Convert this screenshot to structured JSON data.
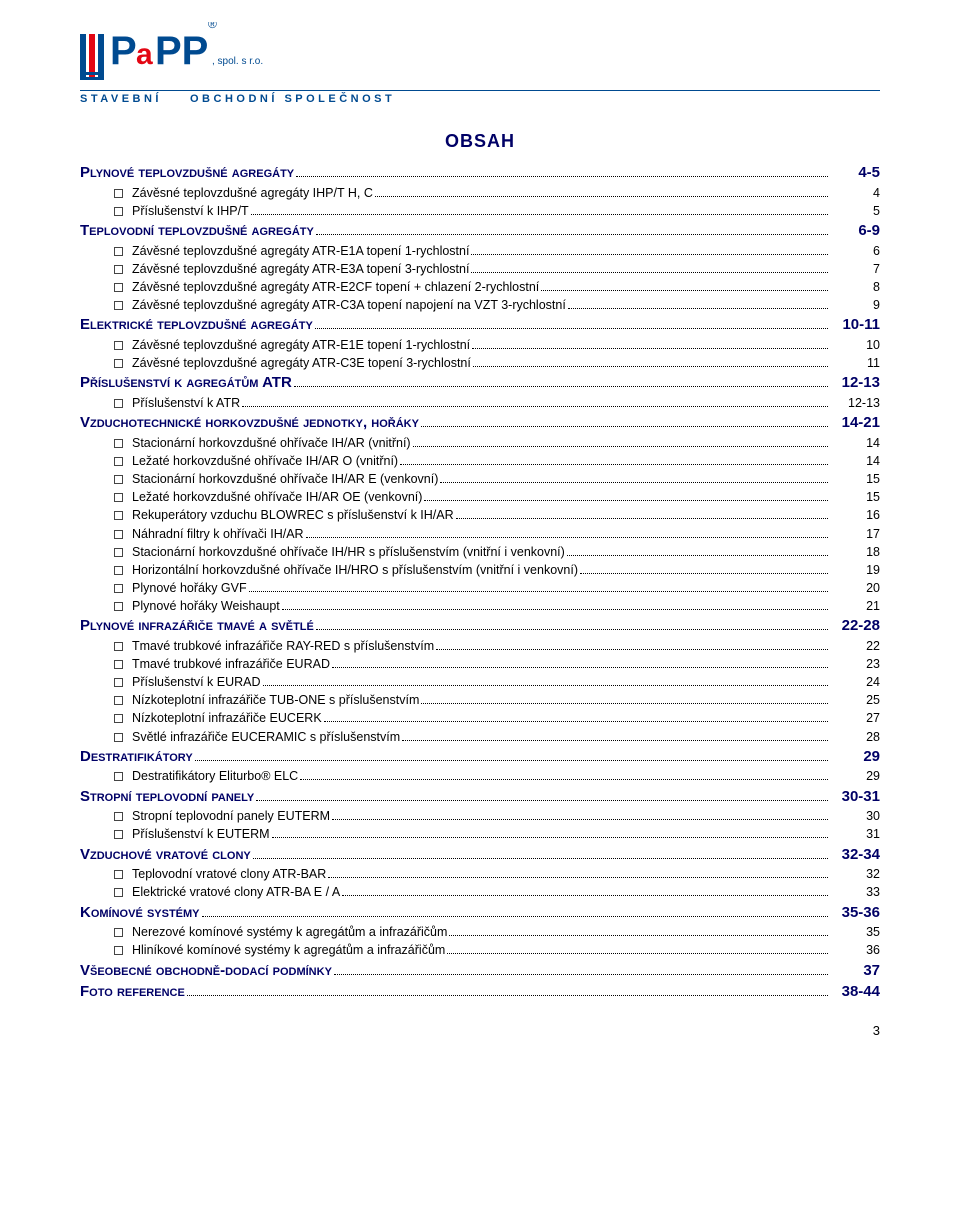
{
  "logo": {
    "brand_main": "P PP",
    "brand_a": "a",
    "spol": ", spol. s r.o.",
    "registered": "®",
    "subtitle_left": "STAVEBNÍ",
    "subtitle_right": "OBCHODNÍ SPOLEČNOST",
    "color_primary": "#004a90",
    "color_accent": "#e30613"
  },
  "main_heading": "OBSAH",
  "footer_page": "3",
  "toc": [
    {
      "t": "section",
      "label": "Plynové teplovzdušné agregáty",
      "page": "4-5"
    },
    {
      "t": "sub",
      "label": "Závěsné teplovzdušné agregáty IHP/T H, C",
      "page": "4"
    },
    {
      "t": "sub",
      "label": "Příslušenství k IHP/T",
      "page": "5"
    },
    {
      "t": "section",
      "label": "Teplovodní teplovzdušné agregáty",
      "page": "6-9"
    },
    {
      "t": "sub",
      "label": "Závěsné teplovzdušné agregáty ATR-E1A topení 1-rychlostní",
      "page": "6"
    },
    {
      "t": "sub",
      "label": "Závěsné teplovzdušné agregáty ATR-E3A topení 3-rychlostní",
      "page": "7"
    },
    {
      "t": "sub",
      "label": "Závěsné teplovzdušné agregáty ATR-E2CF topení + chlazení 2-rychlostní",
      "page": "8"
    },
    {
      "t": "sub",
      "label": "Závěsné teplovzdušné agregáty ATR-C3A topení napojení na VZT 3-rychlostní",
      "page": "9"
    },
    {
      "t": "section",
      "label": "Elektrické teplovzdušné agregáty",
      "page": "10-11"
    },
    {
      "t": "sub",
      "label": "Závěsné teplovzdušné agregáty ATR-E1E topení 1-rychlostní",
      "page": "10"
    },
    {
      "t": "sub",
      "label": "Závěsné teplovzdušné agregáty ATR-C3E topení 3-rychlostní",
      "page": "11"
    },
    {
      "t": "section",
      "label": "Příslušenství k agregátům ATR",
      "page": "12-13"
    },
    {
      "t": "sub",
      "label": "Příslušenství k ATR",
      "page": "12-13"
    },
    {
      "t": "section",
      "label": "Vzduchotechnické horkovzdušné jednotky, hořáky",
      "page": "14-21"
    },
    {
      "t": "sub",
      "label": "Stacionární horkovzdušné ohřívače IH/AR (vnitřní)",
      "page": "14"
    },
    {
      "t": "sub",
      "label": "Ležaté horkovzdušné ohřívače IH/AR O (vnitřní)",
      "page": "14"
    },
    {
      "t": "sub",
      "label": "Stacionární horkovzdušné ohřívače IH/AR E (venkovní)",
      "page": "15"
    },
    {
      "t": "sub",
      "label": "Ležaté horkovzdušné ohřívače IH/AR OE (venkovní)",
      "page": "15"
    },
    {
      "t": "sub",
      "label": "Rekuperátory vzduchu BLOWREC s příslušenství k IH/AR",
      "page": "16"
    },
    {
      "t": "sub",
      "label": "Náhradní filtry k ohřívači IH/AR",
      "page": "17"
    },
    {
      "t": "sub",
      "label": "Stacionární horkovzdušné ohřívače IH/HR s příslušenstvím (vnitřní i venkovní)",
      "page": "18"
    },
    {
      "t": "sub",
      "label": "Horizontální horkovzdušné ohřívače IH/HRO s příslušenstvím (vnitřní i venkovní)",
      "page": "19"
    },
    {
      "t": "sub",
      "label": "Plynové hořáky GVF",
      "page": "20"
    },
    {
      "t": "sub",
      "label": "Plynové hořáky Weishaupt",
      "page": "21"
    },
    {
      "t": "section",
      "label": "Plynové infrazářiče tmavé a světlé",
      "page": "22-28"
    },
    {
      "t": "sub",
      "label": "Tmavé trubkové infrazářiče RAY-RED s příslušenstvím",
      "page": "22"
    },
    {
      "t": "sub",
      "label": "Tmavé trubkové infrazářiče EURAD",
      "page": "23"
    },
    {
      "t": "sub",
      "label": "Příslušenství k EURAD",
      "page": "24"
    },
    {
      "t": "sub",
      "label": "Nízkoteplotní infrazářiče TUB-ONE s příslušenstvím",
      "page": "25"
    },
    {
      "t": "sub",
      "label": "Nízkoteplotní infrazářiče EUCERK",
      "page": "27"
    },
    {
      "t": "sub",
      "label": "Světlé infrazářiče EUCERAMIC s příslušenstvím",
      "page": "28"
    },
    {
      "t": "section",
      "label": "Destratifikátory",
      "page": "29"
    },
    {
      "t": "sub",
      "label": "Destratifikátory Eliturbo® ELC",
      "page": "29"
    },
    {
      "t": "section",
      "label": "Stropní teplovodní panely",
      "page": "30-31"
    },
    {
      "t": "sub",
      "label": "Stropní teplovodní panely EUTERM",
      "page": "30"
    },
    {
      "t": "sub",
      "label": "Příslušenství k EUTERM",
      "page": "31"
    },
    {
      "t": "section",
      "label": "Vzduchové vratové clony",
      "page": "32-34"
    },
    {
      "t": "sub",
      "label": "Teplovodní vratové clony ATR-BAR",
      "page": "32"
    },
    {
      "t": "sub",
      "label": "Elektrické vratové clony ATR-BA E / A",
      "page": "33"
    },
    {
      "t": "section",
      "label": "Komínové systémy",
      "page": "35-36"
    },
    {
      "t": "sub",
      "label": "Nerezové komínové systémy k agregátům a infrazářičům",
      "page": "35"
    },
    {
      "t": "sub",
      "label": "Hliníkové komínové systémy k agregátům a infrazářičům",
      "page": "36"
    },
    {
      "t": "section",
      "label": "Všeobecné obchodně-dodací podmínky",
      "page": "37"
    },
    {
      "t": "section",
      "label": "Foto reference",
      "page": "38-44"
    }
  ]
}
